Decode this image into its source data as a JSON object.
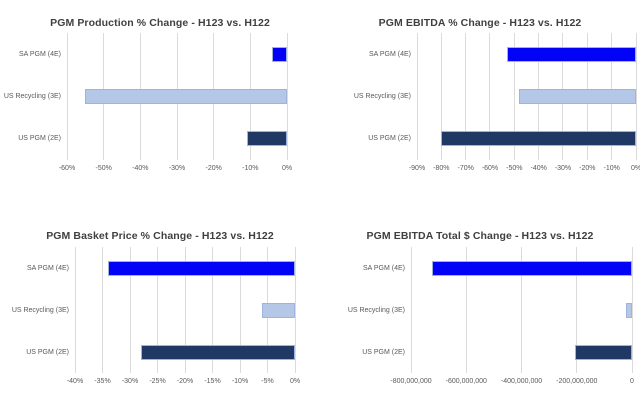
{
  "palette": {
    "background": "#FFFFFF",
    "title_text": "#404040",
    "axis_text": "#595959",
    "gridline": "#DBDBDB",
    "bar_border": "#9FB3DC",
    "bar_colors": [
      "#0202F6",
      "#B4C7E7",
      "#1F3864"
    ]
  },
  "chart_data": [
    {
      "type": "bar",
      "orientation": "horizontal",
      "title": "PGM Production % Change - H123 vs. H122",
      "categories": [
        "SA PGM (4E)",
        "US Recycling (3E)",
        "US PGM (2E)"
      ],
      "values": [
        -4,
        -55,
        -11
      ],
      "unit": "%",
      "xlim": [
        -60,
        0
      ],
      "xticks": [
        -60,
        -50,
        -40,
        -30,
        -20,
        -10,
        0
      ],
      "xtick_labels": [
        "-60%",
        "-50%",
        "-40%",
        "-30%",
        "-20%",
        "-10%",
        "0%"
      ],
      "grid": true,
      "legend": false
    },
    {
      "type": "bar",
      "orientation": "horizontal",
      "title": "PGM EBITDA % Change - H123 vs. H122",
      "categories": [
        "SA PGM (4E)",
        "US Recycling (3E)",
        "US PGM (2E)"
      ],
      "values": [
        -53,
        -48,
        -80
      ],
      "unit": "%",
      "xlim": [
        -90,
        0
      ],
      "xticks": [
        -90,
        -80,
        -70,
        -60,
        -50,
        -40,
        -30,
        -20,
        -10,
        0
      ],
      "xtick_labels": [
        "-90%",
        "-80%",
        "-70%",
        "-60%",
        "-50%",
        "-40%",
        "-30%",
        "-20%",
        "-10%",
        "0%"
      ],
      "grid": true,
      "legend": false
    },
    {
      "type": "bar",
      "orientation": "horizontal",
      "title": "PGM Basket Price % Change - H123 vs. H122",
      "categories": [
        "SA PGM (4E)",
        "US Recycling (3E)",
        "US PGM (2E)"
      ],
      "values": [
        -34,
        -6,
        -28
      ],
      "unit": "%",
      "xlim": [
        -40,
        0
      ],
      "xticks": [
        -40,
        -35,
        -30,
        -25,
        -20,
        -15,
        -10,
        -5,
        0
      ],
      "xtick_labels": [
        "-40%",
        "-35%",
        "-30%",
        "-25%",
        "-20%",
        "-15%",
        "-10%",
        "-5%",
        "0%"
      ],
      "grid": true,
      "legend": false
    },
    {
      "type": "bar",
      "orientation": "horizontal",
      "title": "PGM EBITDA Total $ Change - H123 vs. H122",
      "categories": [
        "SA PGM (4E)",
        "US Recycling (3E)",
        "US PGM (2E)"
      ],
      "values": [
        -725000000,
        -20000000,
        -205000000
      ],
      "unit": "USD",
      "xlim": [
        -800000000,
        0
      ],
      "xticks": [
        -800000000,
        -600000000,
        -400000000,
        -200000000,
        0
      ],
      "xtick_labels": [
        "-800,000,000",
        "-600,000,000",
        "-400,000,000",
        "-200,000,000",
        "0"
      ],
      "grid": true,
      "legend": false
    }
  ]
}
